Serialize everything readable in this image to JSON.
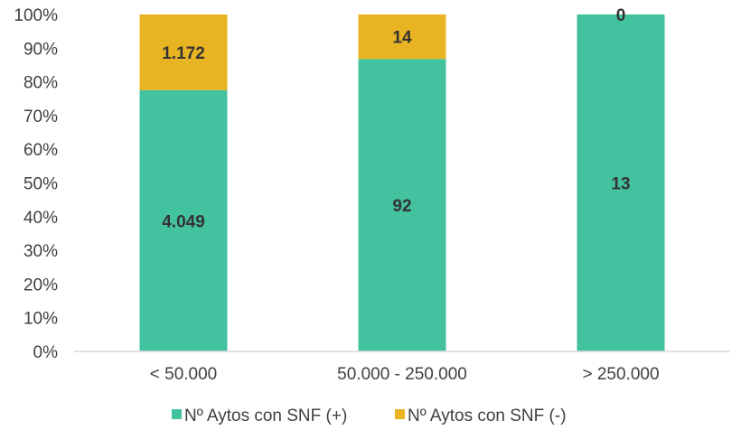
{
  "chart_data": {
    "type": "bar",
    "stacked": "percent",
    "categories": [
      "< 50.000",
      "50.000 - 250.000",
      "> 250.000"
    ],
    "series": [
      {
        "name": "Nº Aytos con SNF (+)",
        "values": [
          4049,
          92,
          13
        ],
        "labels": [
          "4.049",
          "92",
          "13"
        ],
        "color": "#43C2A0"
      },
      {
        "name": "Nº Aytos con SNF (-)",
        "values": [
          1172,
          14,
          0
        ],
        "labels": [
          "1.172",
          "14",
          "0"
        ],
        "color": "#E8B423"
      }
    ],
    "yticks": [
      "0%",
      "10%",
      "20%",
      "30%",
      "40%",
      "50%",
      "60%",
      "70%",
      "80%",
      "90%",
      "100%"
    ],
    "ylim": [
      0,
      100
    ],
    "grid": false,
    "legend": "bottom"
  }
}
